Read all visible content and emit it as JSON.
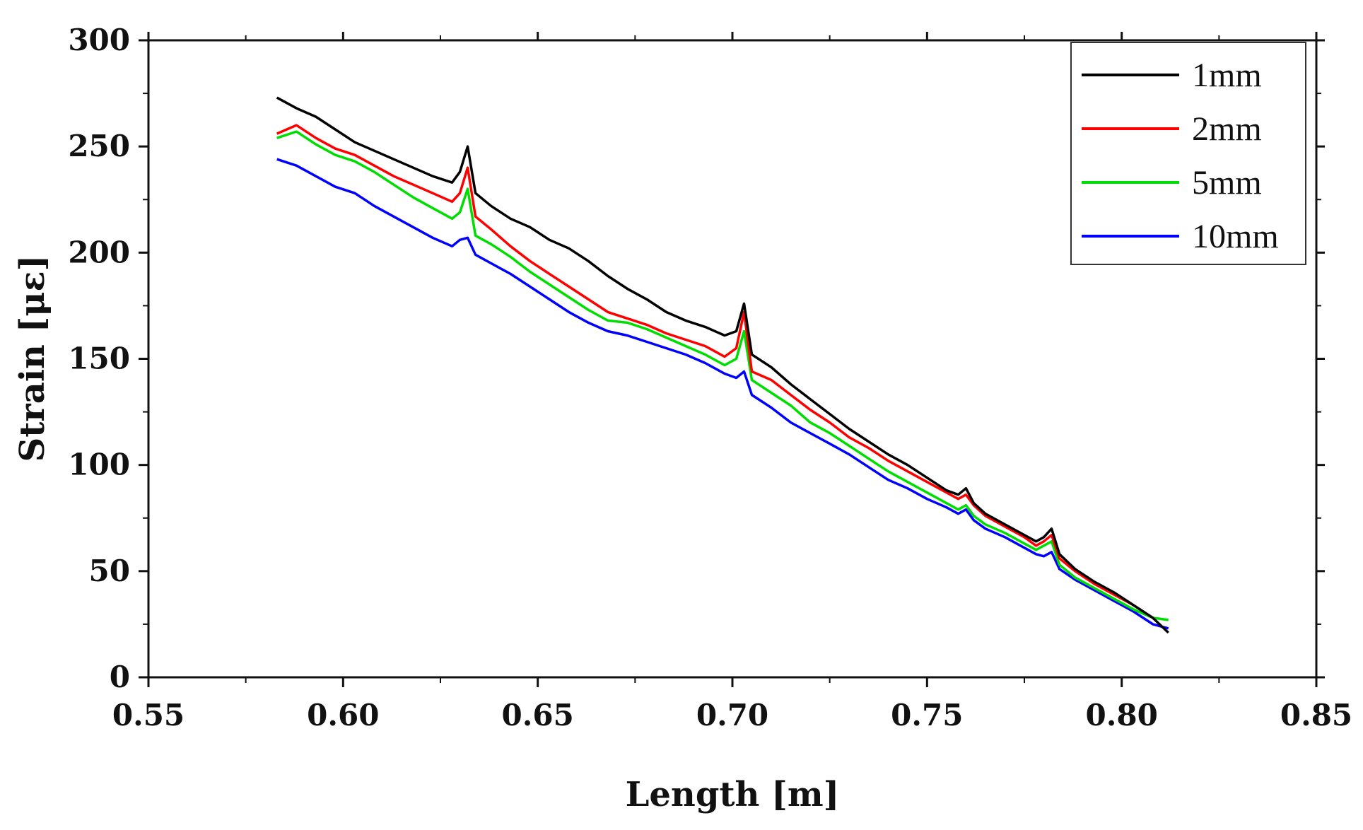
{
  "chart_data": {
    "type": "line",
    "title": "",
    "xlabel": "Length [m]",
    "ylabel": "Strain [με]",
    "xlim": [
      0.55,
      0.85
    ],
    "ylim": [
      0,
      300
    ],
    "xticks": [
      0.55,
      0.6,
      0.65,
      0.7,
      0.75,
      0.8,
      0.85
    ],
    "xtick_labels": [
      "0.55",
      "0.60",
      "0.65",
      "0.70",
      "0.75",
      "0.80",
      "0.85"
    ],
    "yticks": [
      0,
      50,
      100,
      150,
      200,
      250,
      300
    ],
    "ytick_labels": [
      "0",
      "50",
      "100",
      "150",
      "200",
      "250",
      "300"
    ],
    "legend_position": "top-right",
    "grid": false,
    "series": [
      {
        "name": "1mm",
        "color": "#000000",
        "x": [
          0.583,
          0.588,
          0.593,
          0.598,
          0.603,
          0.608,
          0.613,
          0.618,
          0.623,
          0.628,
          0.63,
          0.632,
          0.634,
          0.638,
          0.643,
          0.648,
          0.653,
          0.658,
          0.663,
          0.668,
          0.673,
          0.678,
          0.683,
          0.688,
          0.693,
          0.698,
          0.701,
          0.703,
          0.705,
          0.71,
          0.715,
          0.72,
          0.725,
          0.73,
          0.735,
          0.74,
          0.745,
          0.75,
          0.755,
          0.758,
          0.76,
          0.762,
          0.765,
          0.77,
          0.775,
          0.778,
          0.78,
          0.782,
          0.784,
          0.788,
          0.793,
          0.798,
          0.803,
          0.808,
          0.812
        ],
        "y": [
          273,
          268,
          264,
          258,
          252,
          248,
          244,
          240,
          236,
          233,
          238,
          250,
          228,
          222,
          216,
          212,
          206,
          202,
          196,
          189,
          183,
          178,
          172,
          168,
          165,
          161,
          163,
          176,
          152,
          146,
          138,
          131,
          124,
          117,
          111,
          105,
          100,
          94,
          88,
          86,
          89,
          82,
          77,
          72,
          67,
          64,
          66,
          70,
          58,
          51,
          45,
          40,
          34,
          28,
          21
        ]
      },
      {
        "name": "2mm",
        "color": "#ff0000",
        "x": [
          0.583,
          0.588,
          0.593,
          0.598,
          0.603,
          0.608,
          0.613,
          0.618,
          0.623,
          0.628,
          0.63,
          0.632,
          0.634,
          0.638,
          0.643,
          0.648,
          0.653,
          0.658,
          0.663,
          0.668,
          0.673,
          0.678,
          0.683,
          0.688,
          0.693,
          0.698,
          0.701,
          0.703,
          0.705,
          0.71,
          0.715,
          0.72,
          0.725,
          0.73,
          0.735,
          0.74,
          0.745,
          0.75,
          0.755,
          0.758,
          0.76,
          0.762,
          0.765,
          0.77,
          0.775,
          0.778,
          0.78,
          0.782,
          0.784,
          0.788,
          0.793,
          0.798,
          0.803
        ],
        "y": [
          256,
          260,
          254,
          249,
          246,
          241,
          236,
          232,
          228,
          224,
          228,
          240,
          217,
          211,
          203,
          196,
          190,
          184,
          178,
          172,
          169,
          166,
          162,
          159,
          156,
          151,
          155,
          172,
          144,
          140,
          133,
          126,
          120,
          113,
          108,
          102,
          97,
          92,
          87,
          84,
          86,
          81,
          76,
          71,
          66,
          62,
          64,
          67,
          56,
          50,
          44,
          39,
          34
        ]
      },
      {
        "name": "5mm",
        "color": "#00dd00",
        "x": [
          0.583,
          0.588,
          0.593,
          0.598,
          0.603,
          0.608,
          0.613,
          0.618,
          0.623,
          0.628,
          0.63,
          0.632,
          0.634,
          0.638,
          0.643,
          0.648,
          0.653,
          0.658,
          0.663,
          0.668,
          0.673,
          0.678,
          0.683,
          0.688,
          0.693,
          0.698,
          0.701,
          0.703,
          0.705,
          0.71,
          0.715,
          0.72,
          0.725,
          0.73,
          0.735,
          0.74,
          0.745,
          0.75,
          0.755,
          0.758,
          0.76,
          0.762,
          0.765,
          0.77,
          0.775,
          0.778,
          0.78,
          0.782,
          0.784,
          0.788,
          0.793,
          0.798,
          0.803,
          0.808,
          0.812
        ],
        "y": [
          254,
          257,
          251,
          246,
          243,
          238,
          232,
          226,
          221,
          216,
          219,
          230,
          208,
          204,
          198,
          191,
          185,
          179,
          173,
          168,
          167,
          164,
          160,
          156,
          152,
          147,
          150,
          163,
          140,
          134,
          128,
          120,
          115,
          109,
          103,
          97,
          92,
          87,
          82,
          79,
          81,
          76,
          72,
          68,
          63,
          60,
          62,
          64,
          53,
          47,
          42,
          37,
          32,
          28,
          27
        ]
      },
      {
        "name": "10mm",
        "color": "#0000ff",
        "x": [
          0.583,
          0.588,
          0.593,
          0.598,
          0.603,
          0.608,
          0.613,
          0.618,
          0.623,
          0.628,
          0.63,
          0.632,
          0.634,
          0.638,
          0.643,
          0.648,
          0.653,
          0.658,
          0.663,
          0.668,
          0.673,
          0.678,
          0.683,
          0.688,
          0.693,
          0.698,
          0.701,
          0.703,
          0.705,
          0.71,
          0.715,
          0.72,
          0.725,
          0.73,
          0.735,
          0.74,
          0.745,
          0.75,
          0.755,
          0.758,
          0.76,
          0.762,
          0.765,
          0.77,
          0.775,
          0.778,
          0.78,
          0.782,
          0.784,
          0.788,
          0.793,
          0.798,
          0.803,
          0.808,
          0.812
        ],
        "y": [
          244,
          241,
          236,
          231,
          228,
          222,
          217,
          212,
          207,
          203,
          206,
          207,
          199,
          195,
          190,
          184,
          178,
          172,
          167,
          163,
          161,
          158,
          155,
          152,
          148,
          143,
          141,
          144,
          133,
          127,
          120,
          115,
          110,
          105,
          99,
          93,
          89,
          84,
          80,
          77,
          79,
          74,
          70,
          66,
          61,
          58,
          57,
          59,
          51,
          46,
          41,
          36,
          31,
          25,
          23
        ]
      }
    ]
  }
}
